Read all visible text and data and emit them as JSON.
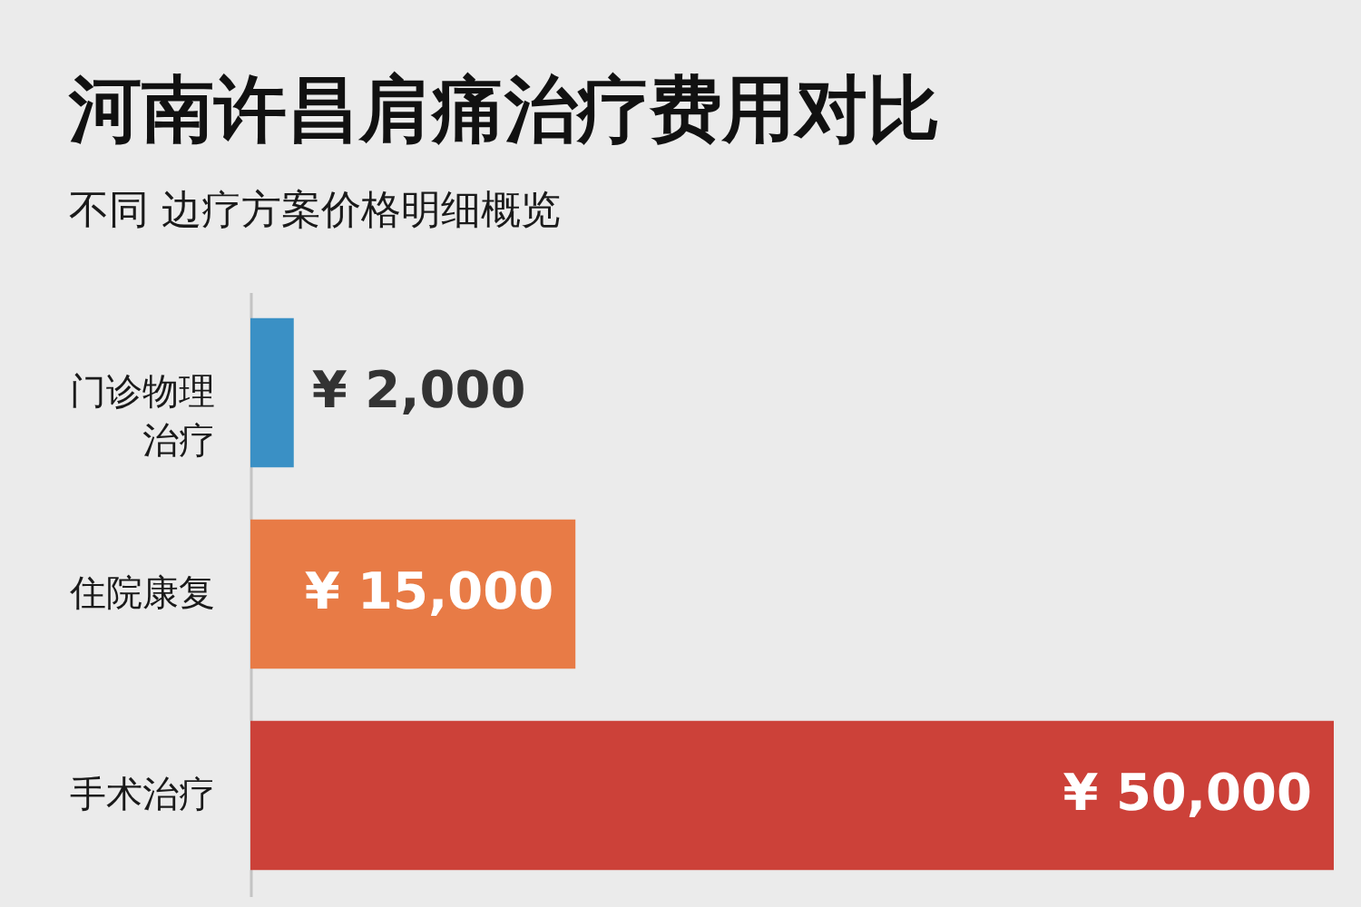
{
  "chart_data": {
    "type": "bar",
    "title": "河南许昌肩痛治疗费用对比",
    "subtitle": "不同 边疗方案价格明细概览",
    "categories": [
      "门诊物理治疗",
      "住院康复",
      "手术治疗"
    ],
    "values": [
      2000,
      15000,
      50000
    ],
    "colors": [
      "#3a90c5",
      "#e87b46",
      "#cc4139"
    ],
    "value_labels": [
      "¥ 2,000",
      "¥ 15,000",
      "¥ 50,000"
    ],
    "orientation": "horizontal"
  }
}
